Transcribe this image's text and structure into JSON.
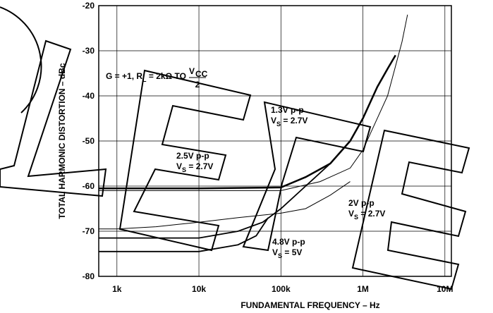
{
  "chart_data": {
    "type": "line",
    "xlabel": "FUNDAMENTAL FREQUENCY – Hz",
    "ylabel": "TOTAL HARMONIC DISTORTION – dBc",
    "log_x": true,
    "grid": true,
    "xlim": [
      600,
      12000000
    ],
    "ylim": [
      -80,
      -20
    ],
    "xticks": [
      {
        "value": 1000,
        "label": "1k"
      },
      {
        "value": 10000,
        "label": "10k"
      },
      {
        "value": 100000,
        "label": "100k"
      },
      {
        "value": 1000000,
        "label": "1M"
      },
      {
        "value": 10000000,
        "label": "10M"
      }
    ],
    "yticks": [
      -80,
      -70,
      -60,
      -50,
      -40,
      -30,
      -20
    ],
    "series": [
      {
        "color": "#000000",
        "width": 2.5,
        "x": [
          600,
          1000,
          10000,
          100000,
          200000,
          400000,
          700000,
          1000000,
          1500000,
          2000000,
          2500000
        ],
        "values": [
          -60.5,
          -60.5,
          -60.5,
          -60.3,
          -58,
          -55,
          -50,
          -45,
          -38,
          -34,
          -31
        ]
      },
      {
        "color": "#000000",
        "width": 1,
        "x": [
          600,
          100000,
          300000,
          700000,
          1000000,
          2000000,
          3000000,
          3500000
        ],
        "values": [
          -61,
          -61,
          -59,
          -56,
          -52,
          -40,
          -28,
          -22
        ]
      },
      {
        "color": "#000000",
        "width": 1,
        "x": [
          600,
          1000,
          3000,
          10000,
          30000,
          100000,
          200000,
          400000,
          700000
        ],
        "values": [
          -69.5,
          -69.5,
          -69,
          -68,
          -67,
          -66,
          -65,
          -62,
          -59
        ]
      },
      {
        "color": "#000000",
        "width": 1.8,
        "x": [
          600,
          1000,
          10000,
          30000,
          60000,
          100000,
          200000,
          400000
        ],
        "values": [
          -71.5,
          -71.5,
          -71.5,
          -70,
          -68,
          -65,
          -60,
          -55
        ]
      },
      {
        "color": "#000000",
        "width": 1.8,
        "x": [
          600,
          10000,
          30000,
          50000,
          70000
        ],
        "values": [
          -74.5,
          -74.5,
          -73,
          -71,
          -67
        ]
      }
    ],
    "annotations": [
      {
        "x": 150,
        "y": 112,
        "lines": [
          [
            {
              "text": "G = +1, R"
            },
            {
              "sub": "L"
            },
            {
              "text": " = 2kΩ TO "
            },
            {
              "frac_top": "V",
              "frac_sub": "CC",
              "frac_bottom": "2"
            }
          ]
        ]
      },
      {
        "x": 384,
        "y": 160,
        "lines": [
          [
            {
              "text": "1.3V p-p"
            }
          ],
          [
            {
              "text": "V"
            },
            {
              "sub": "S"
            },
            {
              "text": " = 2.7V"
            }
          ]
        ]
      },
      {
        "x": 250,
        "y": 225,
        "lines": [
          [
            {
              "text": "2.5V p-p"
            }
          ],
          [
            {
              "text": "V"
            },
            {
              "sub": "S"
            },
            {
              "text": " = 2.7V"
            }
          ]
        ]
      },
      {
        "x": 494,
        "y": 292,
        "lines": [
          [
            {
              "text": "2V p-p"
            }
          ],
          [
            {
              "text": "V"
            },
            {
              "sub": "S"
            },
            {
              "text": " = 2.7V"
            }
          ]
        ]
      },
      {
        "x": 386,
        "y": 347,
        "lines": [
          [
            {
              "text": "4.8V p-p"
            }
          ],
          [
            {
              "text": "V"
            },
            {
              "sub": "S"
            },
            {
              "text": " = 5V"
            }
          ]
        ]
      }
    ]
  }
}
